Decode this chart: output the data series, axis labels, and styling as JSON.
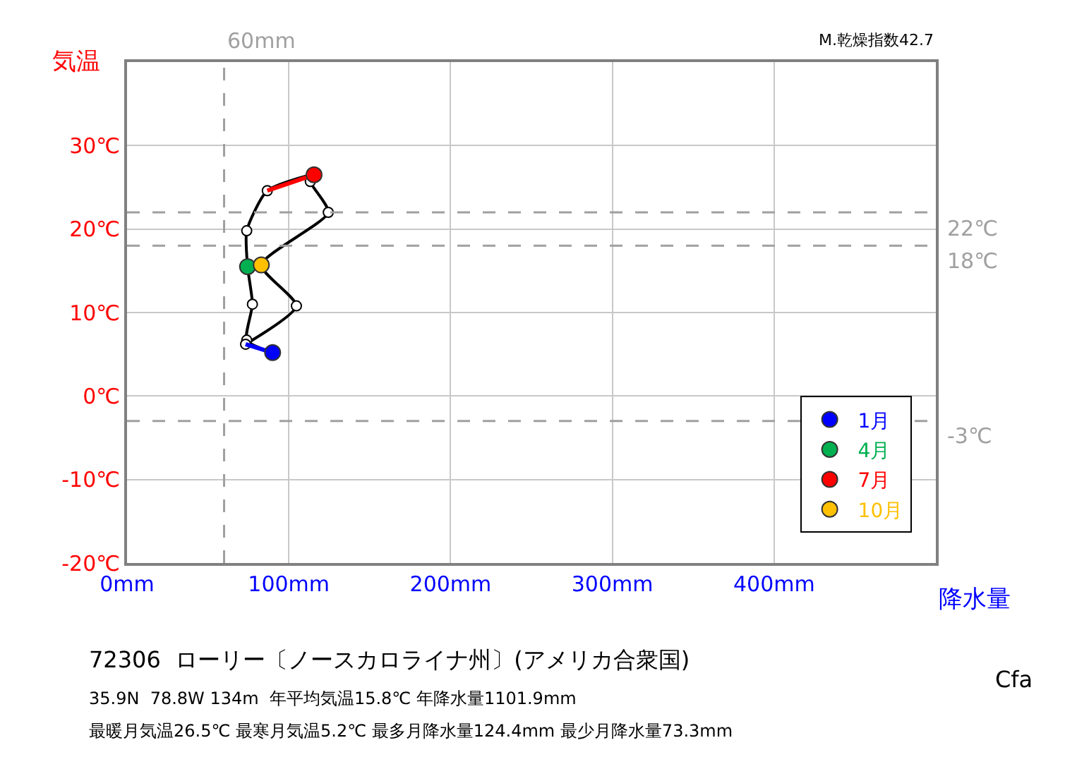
{
  "chart_data": {
    "type": "line",
    "title": "72306  ローリー〔ノースカロライナ州〕(アメリカ合衆国)",
    "xlabel": "降水量",
    "ylabel": "気温",
    "xlim": [
      0,
      500
    ],
    "ylim": [
      -20,
      40
    ],
    "xticks": [
      {
        "value": 0,
        "label": "0mm"
      },
      {
        "value": 100,
        "label": "100mm"
      },
      {
        "value": 200,
        "label": "200mm"
      },
      {
        "value": 300,
        "label": "300mm"
      },
      {
        "value": 400,
        "label": "400mm"
      },
      {
        "value": 500,
        "label": null
      }
    ],
    "yticks": [
      {
        "value": -20,
        "label": "-20℃"
      },
      {
        "value": -10,
        "label": "-10℃"
      },
      {
        "value": 0,
        "label": "0℃"
      },
      {
        "value": 10,
        "label": "10℃"
      },
      {
        "value": 20,
        "label": "20℃"
      },
      {
        "value": 30,
        "label": "30℃"
      },
      {
        "value": 40,
        "label": null
      }
    ],
    "grid": true,
    "legend": "bottom right",
    "marker": "circle",
    "line_style": "solid",
    "series": [
      {
        "color": "#000000",
        "x": [
          90,
          74,
          77.5,
          74.5,
          74,
          86.7,
          115.6,
          113.3,
          124.4,
          83,
          104.7,
          73.3
        ],
        "values": [
          5.2,
          6.7,
          11.0,
          15.5,
          19.8,
          24.6,
          26.5,
          25.7,
          22.0,
          15.7,
          10.8,
          6.2
        ]
      },
      {
        "type": "line",
        "color": "#0000ff",
        "marker": "none",
        "x": [
          73.3,
          90
        ],
        "values": [
          6.2,
          5.2
        ]
      },
      {
        "type": "line",
        "color": "#ff0000",
        "marker": "none",
        "x": [
          86.7,
          115.6
        ],
        "values": [
          24.6,
          26.5
        ]
      },
      {
        "type": "scatter",
        "name": "1月",
        "color": "#0000ff",
        "x": [
          90
        ],
        "values": [
          5.2
        ]
      },
      {
        "type": "scatter",
        "name": "4月",
        "color": "#00b050",
        "x": [
          74.5
        ],
        "values": [
          15.5
        ]
      },
      {
        "type": "scatter",
        "name": "7月",
        "color": "#ff0000",
        "x": [
          115.6
        ],
        "values": [
          26.5
        ]
      },
      {
        "type": "scatter",
        "name": "10月",
        "color": "#ffc000",
        "x": [
          83
        ],
        "values": [
          15.7
        ]
      }
    ],
    "ref_lines": [
      {
        "axis": "y",
        "value": 22,
        "label": "22℃",
        "color": "#a0a0a0",
        "line_style": "dashed"
      },
      {
        "axis": "y",
        "value": 18,
        "label": "18℃",
        "color": "#a0a0a0",
        "line_style": "dashed"
      },
      {
        "axis": "y",
        "value": -3,
        "label": "-3℃",
        "color": "#a0a0a0",
        "line_style": "dashed"
      },
      {
        "axis": "x",
        "value": 60,
        "label": "60mm",
        "color": "#a0a0a0",
        "line_style": "dashed"
      }
    ],
    "annotations": [
      "M.乾燥指数42.7",
      "35.9N  78.8W 134m  年平均気温15.8℃ 年降水量1101.9mm",
      "最暖月気温26.5℃ 最寒月気温5.2℃ 最多月降水量124.4mm 最少月降水量73.3mm",
      "Cfa"
    ]
  }
}
